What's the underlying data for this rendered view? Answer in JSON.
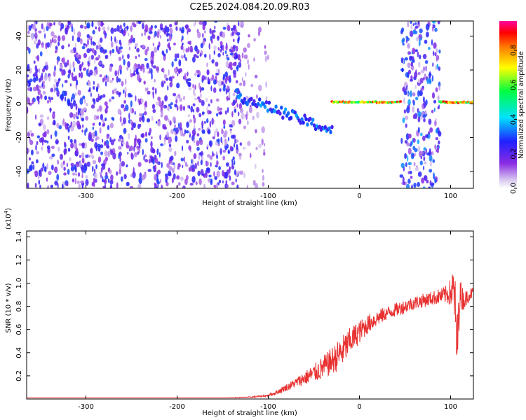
{
  "chart_data": [
    {
      "type": "heatmap",
      "title": "C2E5.2024.084.20.09.R03",
      "xlabel": "Height of straight line (km)",
      "ylabel": "Frequency (Hz)",
      "xlim": [
        -365,
        125
      ],
      "ylim": [
        -50,
        49
      ],
      "xticks": [
        "-300",
        "-200",
        "-100",
        "0",
        "100"
      ],
      "xtick_values": [
        -300,
        -200,
        -100,
        0,
        100
      ],
      "yticks": [
        "40",
        "20",
        "0",
        "-20",
        "-40"
      ],
      "ytick_values": [
        40,
        20,
        0,
        -20,
        -40
      ],
      "colorbar": {
        "label": "Normalized spectral amplitude",
        "range": [
          0,
          0.97
        ],
        "ticks": [
          "0.0",
          "0.2",
          "0.4",
          "0.6",
          "0.8"
        ],
        "tick_values": [
          0.0,
          0.2,
          0.4,
          0.6,
          0.8
        ]
      },
      "features": [
        {
          "kind": "noise",
          "x_range": [
            -365,
            -130
          ],
          "y_range": [
            -50,
            49
          ],
          "amplitude": 0.12
        },
        {
          "kind": "noise",
          "x_range": [
            -130,
            -100
          ],
          "y_range": [
            -50,
            49
          ],
          "amplitude": 0.04
        },
        {
          "kind": "noise",
          "x_range": [
            46,
            88
          ],
          "y_range": [
            -50,
            49
          ],
          "amplitude": 0.15
        },
        {
          "kind": "tone",
          "x_range": [
            -135,
            -30
          ],
          "y_start": 5,
          "y_end": -16,
          "amplitude": 0.35
        },
        {
          "kind": "tone",
          "x_range": [
            -30,
            45
          ],
          "y_start": 1,
          "y_end": 1,
          "amplitude": 0.85
        },
        {
          "kind": "tone",
          "x_range": [
            88,
            125
          ],
          "y_start": 1,
          "y_end": 1,
          "amplitude": 0.85
        }
      ]
    },
    {
      "type": "line",
      "xlabel": "Height of straight line (km)",
      "ylabel": "SNR (10 * v/v)",
      "multiplier_label": "(x10",
      "multiplier_exponent": "4",
      "multiplier_close": ")",
      "xlim": [
        -365,
        125
      ],
      "ylim": [
        0,
        1.45
      ],
      "xticks": [
        "-300",
        "-200",
        "-100",
        "0",
        "100"
      ],
      "xtick_values": [
        -300,
        -200,
        -100,
        0,
        100
      ],
      "yticks": [
        "1.4",
        "1.2",
        "1.0",
        "0.8",
        "0.6",
        "0.4",
        "0.2"
      ],
      "ytick_values": [
        1.4,
        1.2,
        1.0,
        0.8,
        0.6,
        0.4,
        0.2
      ],
      "color": "#e83030",
      "series": [
        {
          "x": [
            -365,
            -300,
            -250,
            -200,
            -150,
            -120,
            -100,
            -90,
            -80,
            -70,
            -60,
            -50,
            -40,
            -30,
            -20,
            -10,
            0,
            10,
            20,
            30,
            40,
            50,
            60,
            70,
            80,
            90,
            95,
            100,
            103,
            105,
            107,
            110,
            115,
            120,
            125
          ],
          "y": [
            0.01,
            0.01,
            0.01,
            0.01,
            0.01,
            0.015,
            0.03,
            0.06,
            0.1,
            0.14,
            0.18,
            0.22,
            0.27,
            0.33,
            0.4,
            0.5,
            0.58,
            0.65,
            0.7,
            0.74,
            0.77,
            0.8,
            0.83,
            0.85,
            0.87,
            0.89,
            0.9,
            0.92,
            0.95,
            0.8,
            0.4,
            0.9,
            0.85,
            0.9,
            0.92
          ],
          "noise": [
            0,
            0,
            0,
            0,
            0,
            0.005,
            0.01,
            0.02,
            0.03,
            0.04,
            0.06,
            0.08,
            0.1,
            0.12,
            0.14,
            0.12,
            0.1,
            0.08,
            0.07,
            0.06,
            0.06,
            0.06,
            0.06,
            0.06,
            0.06,
            0.07,
            0.08,
            0.12,
            0.2,
            0.25,
            0.3,
            0.15,
            0.08,
            0.06,
            0.05
          ]
        }
      ]
    }
  ]
}
